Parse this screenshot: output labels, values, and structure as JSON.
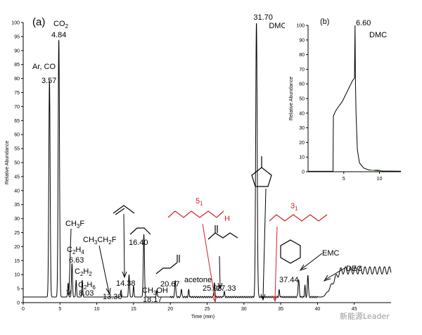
{
  "panel_a_label": "(a)",
  "panel_b_label": "(b)",
  "watermark": "新能源Leader",
  "chart_data": [
    {
      "id": "a",
      "type": "line",
      "title": "",
      "xlabel": "Time (min)",
      "ylabel": "Relative Abundance",
      "xlim": [
        0,
        50
      ],
      "ylim": [
        0,
        100
      ],
      "xticks": [
        0,
        5,
        10,
        15,
        20,
        25,
        30,
        35,
        40,
        45
      ],
      "yticks": [
        0,
        5,
        10,
        15,
        20,
        25,
        30,
        35,
        40,
        45,
        50,
        55,
        60,
        65,
        70,
        75,
        80,
        85,
        90,
        95,
        100
      ],
      "baseline": 2,
      "peaks": [
        {
          "t": 3.57,
          "h": 77.5,
          "w": 0.09
        },
        {
          "t": 4.84,
          "h": 92,
          "w": 0.09
        },
        {
          "t": 6.1,
          "h": 5,
          "w": 0.06
        },
        {
          "t": 6.63,
          "h": 12,
          "w": 0.07
        },
        {
          "t": 7.2,
          "h": 6,
          "w": 0.06
        },
        {
          "t": 8.03,
          "h": 6,
          "w": 0.06
        },
        {
          "t": 13.3,
          "h": 2.5,
          "w": 0.06
        },
        {
          "t": 14.38,
          "h": 8,
          "w": 0.07
        },
        {
          "t": 15.0,
          "h": 4,
          "w": 0.06
        },
        {
          "t": 16.4,
          "h": 22.5,
          "w": 0.08
        },
        {
          "t": 18.17,
          "h": 2.5,
          "w": 0.06
        },
        {
          "t": 20.67,
          "h": 6,
          "w": 0.07
        },
        {
          "t": 21.5,
          "h": 3,
          "w": 0.06
        },
        {
          "t": 22.5,
          "h": 2.5,
          "w": 0.06
        },
        {
          "t": 25.98,
          "h": 5,
          "w": 0.07
        },
        {
          "t": 27.33,
          "h": 2,
          "w": 0.06
        },
        {
          "t": 31.7,
          "h": 98,
          "w": 0.1
        },
        {
          "t": 34.8,
          "h": 2.5,
          "w": 0.06
        },
        {
          "t": 37.44,
          "h": 6,
          "w": 0.08
        },
        {
          "t": 38.3,
          "h": 4,
          "w": 0.06
        },
        {
          "t": 38.7,
          "h": 8,
          "w": 0.07
        }
      ],
      "rise": {
        "start": 40.5,
        "end": 43.5,
        "level": 9.5,
        "end_t": 50
      },
      "labels": [
        {
          "text": "31.70",
          "t": 31.7,
          "label_t": 31.3,
          "label_y": 101
        },
        {
          "text": "DMC",
          "t": 31.7,
          "label_t": 33.4,
          "label_y": 98
        }
      ]
    },
    {
      "id": "b",
      "type": "line",
      "title": "",
      "xlabel": "",
      "ylabel": "Relative Abundance",
      "xlim": [
        0,
        13
      ],
      "ylim": [
        0,
        100
      ],
      "xticks": [
        5,
        10
      ],
      "yticks": [
        0,
        10,
        20,
        30,
        40,
        50,
        60,
        70,
        80,
        90,
        100
      ],
      "points": [
        [
          0,
          0.3
        ],
        [
          3.5,
          0.3
        ],
        [
          3.55,
          38
        ],
        [
          3.8,
          41
        ],
        [
          4.2,
          44
        ],
        [
          4.8,
          48
        ],
        [
          5.5,
          55
        ],
        [
          6.2,
          62
        ],
        [
          6.5,
          64
        ],
        [
          6.58,
          100
        ],
        [
          6.63,
          65
        ],
        [
          6.72,
          40
        ],
        [
          6.9,
          15
        ],
        [
          7.2,
          6
        ],
        [
          7.8,
          2.5
        ],
        [
          8.5,
          1.2
        ],
        [
          9.5,
          0.8
        ],
        [
          10.5,
          0.5
        ],
        [
          13,
          0.4
        ]
      ],
      "label_text": "6.60",
      "label_text2": "DMC"
    }
  ],
  "annotations": {
    "ar_co": "Ar, CO",
    "ar_co_time": "3.57",
    "co2_base": "CO",
    "co2_sub": "2",
    "co2_time": "4.84",
    "ch3f_base": "CH",
    "ch3f_sub": "3",
    "ch3f_end": "F",
    "c2h4_base": "C",
    "c2h4_sub1": "2",
    "c2h4_mid": "H",
    "c2h4_sub2": "4",
    "c2h4_time": "6.63",
    "c2h2_base": "C",
    "c2h2_sub1": "2",
    "c2h2_mid": "H",
    "c2h2_sub2": "2",
    "c2h6_base": "C",
    "c2h6_sub1": "2",
    "c2h6_mid": "H",
    "c2h6_sub2": "6",
    "c2h6_time": "8.03",
    "ch3ch2f_a": "CH",
    "ch3ch2f_s1": "3",
    "ch3ch2f_b": "CH",
    "ch3ch2f_s2": "2",
    "ch3ch2f_c": "F",
    "t1330": "13.30",
    "t1438": "14.38",
    "t1640": "16.40",
    "ch3oh": "CH",
    "ch3oh_sub": "3",
    "ch3oh_end": "OH",
    "t1817": "18.17",
    "t2067": "20.67",
    "acetone": "acetone",
    "t2598": "25.98",
    "t2733": "27.33",
    "five": "5",
    "five_sub": "1",
    "three": "3",
    "three_sub": "1",
    "h_label": "H",
    "t3744": "37.44",
    "emc": "EMC",
    "dec": "DEC"
  }
}
